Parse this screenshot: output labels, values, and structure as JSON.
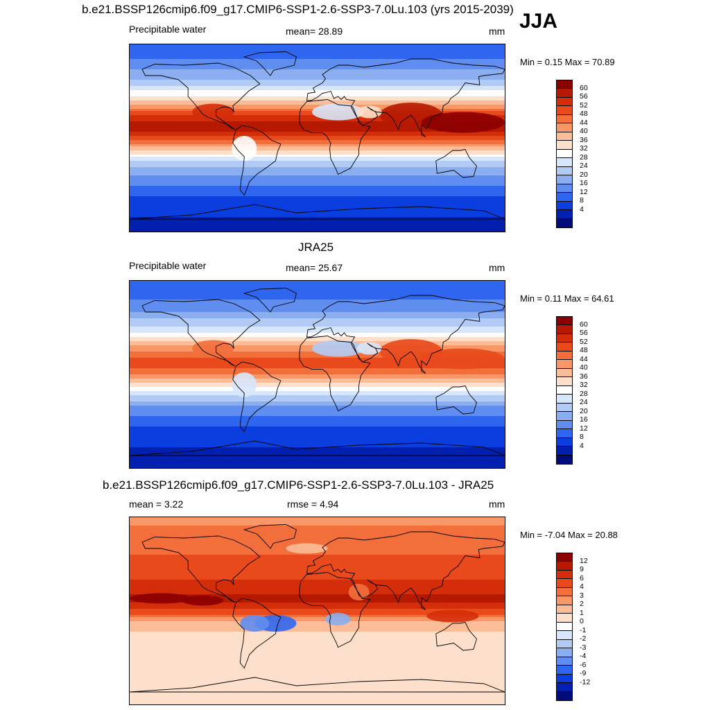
{
  "season": "JJA",
  "panels": [
    {
      "id": "model",
      "title": "b.e21.BSSP126cmip6.f09_g17.CMIP6-SSP1-2.6-SSP3-7.0Lu.103 (yrs 2015-2039)",
      "left_label": "Precipitable water",
      "center_label": "mean=  28.89",
      "units": "mm",
      "minmax": "Min =   0.15 Max =  70.89",
      "colorbar": {
        "labels": [
          "60",
          "56",
          "52",
          "48",
          "44",
          "40",
          "36",
          "32",
          "28",
          "24",
          "20",
          "16",
          "12",
          "8",
          "4"
        ],
        "colors": [
          "#8b0000",
          "#b51a00",
          "#d42d0a",
          "#e84a1c",
          "#f26f3c",
          "#f99766",
          "#fbbc98",
          "#fde0cb",
          "#ffffff",
          "#d8e6fb",
          "#b2cbf5",
          "#8aaef0",
          "#5f8df0",
          "#2f66f0",
          "#0a3ede",
          "#0220b0",
          "#000d78"
        ]
      },
      "map": {
        "bands": [
          {
            "lat": 90,
            "v": 8
          },
          {
            "lat": 75,
            "v": 12
          },
          {
            "lat": 60,
            "v": 18
          },
          {
            "lat": 50,
            "v": 24
          },
          {
            "lat": 40,
            "v": 32
          },
          {
            "lat": 30,
            "v": 42
          },
          {
            "lat": 20,
            "v": 54
          },
          {
            "lat": 10,
            "v": 60
          },
          {
            "lat": 0,
            "v": 50
          },
          {
            "lat": -10,
            "v": 38
          },
          {
            "lat": -20,
            "v": 26
          },
          {
            "lat": -30,
            "v": 18
          },
          {
            "lat": -40,
            "v": 14
          },
          {
            "lat": -50,
            "v": 10
          },
          {
            "lat": -60,
            "v": 6
          },
          {
            "lat": -90,
            "v": 2
          }
        ]
      }
    },
    {
      "id": "obs",
      "title": "JRA25",
      "left_label": "Precipitable water",
      "center_label": "mean=  25.67",
      "units": "mm",
      "minmax": "Min =   0.11 Max =  64.61",
      "colorbar": {
        "labels": [
          "60",
          "56",
          "52",
          "48",
          "44",
          "40",
          "36",
          "32",
          "28",
          "24",
          "20",
          "16",
          "12",
          "8",
          "4"
        ],
        "colors": [
          "#8b0000",
          "#b51a00",
          "#d42d0a",
          "#e84a1c",
          "#f26f3c",
          "#f99766",
          "#fbbc98",
          "#fde0cb",
          "#ffffff",
          "#d8e6fb",
          "#b2cbf5",
          "#8aaef0",
          "#5f8df0",
          "#2f66f0",
          "#0a3ede",
          "#0220b0",
          "#000d78"
        ]
      },
      "map": {
        "bands": [
          {
            "lat": 90,
            "v": 8
          },
          {
            "lat": 75,
            "v": 11
          },
          {
            "lat": 60,
            "v": 16
          },
          {
            "lat": 50,
            "v": 22
          },
          {
            "lat": 40,
            "v": 28
          },
          {
            "lat": 30,
            "v": 38
          },
          {
            "lat": 20,
            "v": 46
          },
          {
            "lat": 10,
            "v": 50
          },
          {
            "lat": 0,
            "v": 44
          },
          {
            "lat": -10,
            "v": 34
          },
          {
            "lat": -20,
            "v": 24
          },
          {
            "lat": -30,
            "v": 16
          },
          {
            "lat": -40,
            "v": 12
          },
          {
            "lat": -50,
            "v": 8
          },
          {
            "lat": -60,
            "v": 5
          },
          {
            "lat": -90,
            "v": 2
          }
        ]
      }
    },
    {
      "id": "diff",
      "title": "b.e21.BSSP126cmip6.f09_g17.CMIP6-SSP1-2.6-SSP3-7.0Lu.103 - JRA25",
      "left_label": "mean =   3.22",
      "center_label": "rmse =   4.94",
      "units": "mm",
      "minmax": "Min =  -7.04 Max =  20.88",
      "colorbar": {
        "labels": [
          "12",
          "9",
          "6",
          "4",
          "3",
          "2",
          "1",
          "0",
          "-1",
          "-2",
          "-3",
          "-4",
          "-6",
          "-9",
          "-12"
        ],
        "colors": [
          "#8b0000",
          "#b51a00",
          "#d42d0a",
          "#e84a1c",
          "#f26f3c",
          "#f99766",
          "#fbbc98",
          "#fde0cb",
          "#ffffff",
          "#d8e6fb",
          "#b2cbf5",
          "#8aaef0",
          "#5f8df0",
          "#2f66f0",
          "#0a3ede",
          "#0220b0",
          "#000d78"
        ]
      },
      "map": {
        "bands": [
          {
            "lat": 90,
            "v": 2.5
          },
          {
            "lat": 75,
            "v": 3.5
          },
          {
            "lat": 60,
            "v": 3
          },
          {
            "lat": 50,
            "v": 4.5
          },
          {
            "lat": 40,
            "v": 5
          },
          {
            "lat": 30,
            "v": 6
          },
          {
            "lat": 20,
            "v": 8
          },
          {
            "lat": 10,
            "v": 10
          },
          {
            "lat": 0,
            "v": 5
          },
          {
            "lat": -10,
            "v": 2
          },
          {
            "lat": -20,
            "v": 1
          },
          {
            "lat": -30,
            "v": 0.5
          },
          {
            "lat": -45,
            "v": 0.5
          },
          {
            "lat": -60,
            "v": 0.5
          },
          {
            "lat": -90,
            "v": 0.5
          }
        ]
      }
    }
  ]
}
